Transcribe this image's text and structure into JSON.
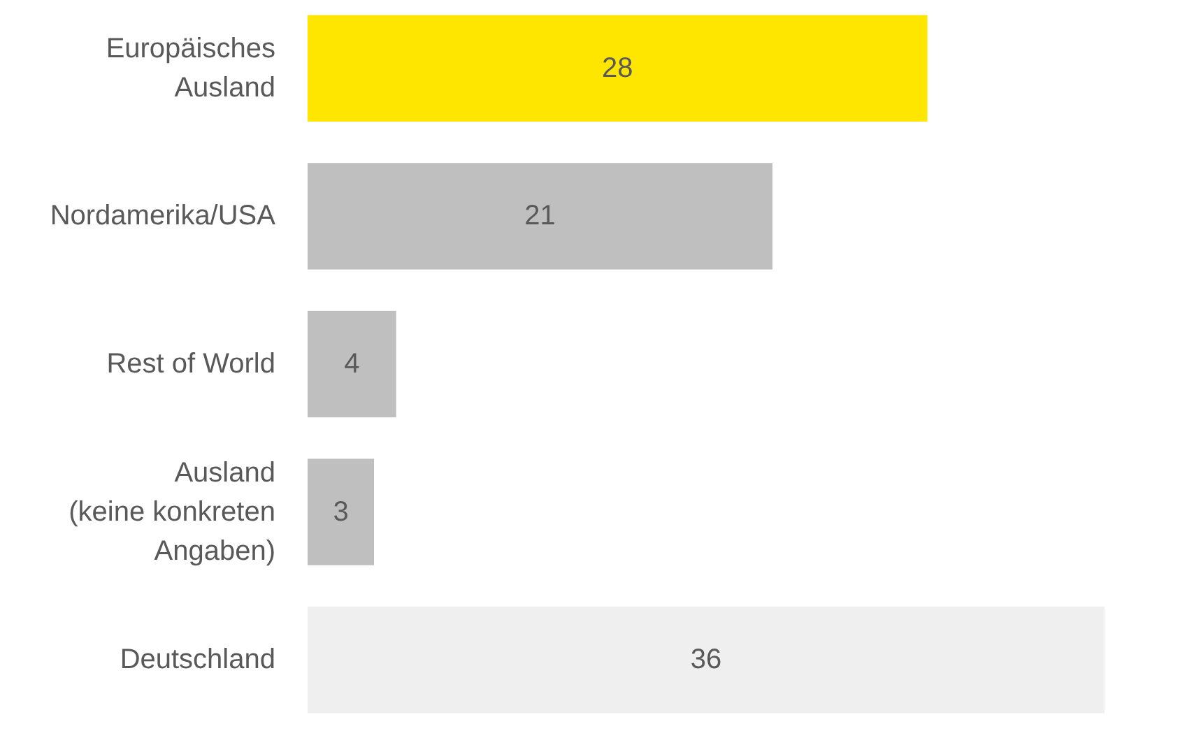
{
  "chart_data": {
    "type": "bar",
    "orientation": "horizontal",
    "categories": [
      "Europäisches\nAusland",
      "Nordamerika/USA",
      "Rest of World",
      "Ausland\n(keine konkreten\nAngaben)",
      "Deutschland"
    ],
    "values": [
      28,
      21,
      4,
      3,
      36
    ],
    "colors": [
      "#ffe600",
      "#bfbfbf",
      "#bfbfbf",
      "#bfbfbf",
      "#efefef"
    ],
    "data_labels": true
  }
}
